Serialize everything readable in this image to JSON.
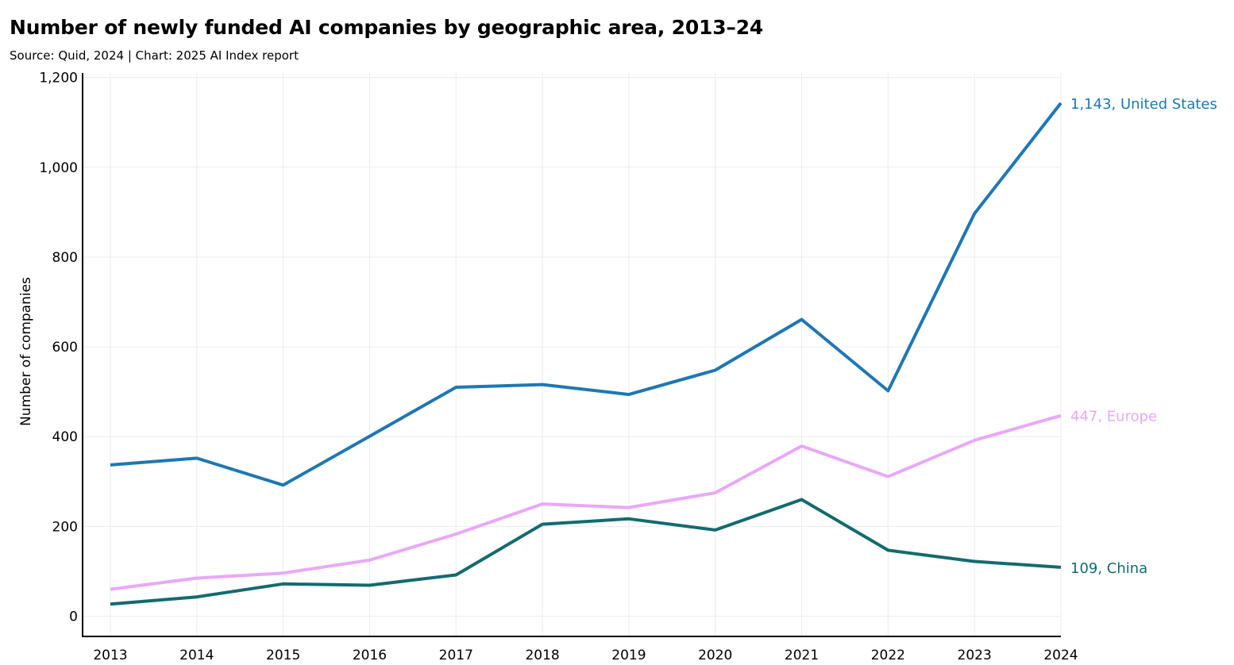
{
  "chart_data": {
    "type": "line",
    "title": "Number of newly funded AI companies by geographic area, 2013–24",
    "subtitle": "Source: Quid, 2024 | Chart: 2025 AI Index report",
    "xlabel": "",
    "ylabel": "Number of companies",
    "x": [
      2013,
      2014,
      2015,
      2016,
      2017,
      2018,
      2019,
      2020,
      2021,
      2022,
      2023,
      2024
    ],
    "x_tick_labels": [
      "2013",
      "2014",
      "2015",
      "2016",
      "2017",
      "2018",
      "2019",
      "2020",
      "2021",
      "2022",
      "2023",
      "2024"
    ],
    "ylim": [
      -45,
      1210
    ],
    "y_ticks": [
      0,
      200,
      400,
      600,
      800,
      1000,
      1200
    ],
    "y_tick_labels": [
      "0",
      "200",
      "400",
      "600",
      "800",
      "1,000",
      "1,200"
    ],
    "grid": true,
    "series": [
      {
        "name": "United States",
        "color": "#1f77b4",
        "values": [
          337,
          352,
          292,
          401,
          510,
          516,
          494,
          548,
          661,
          502,
          897,
          1143
        ],
        "end_label": "1,143, United States"
      },
      {
        "name": "Europe",
        "color": "#e9a8f7",
        "values": [
          60,
          85,
          96,
          125,
          183,
          250,
          242,
          275,
          379,
          311,
          392,
          447
        ],
        "end_label": "447, Europe"
      },
      {
        "name": "China",
        "color": "#136b6e",
        "values": [
          27,
          43,
          72,
          69,
          92,
          205,
          217,
          192,
          260,
          147,
          122,
          109
        ],
        "end_label": "109, China"
      }
    ]
  }
}
